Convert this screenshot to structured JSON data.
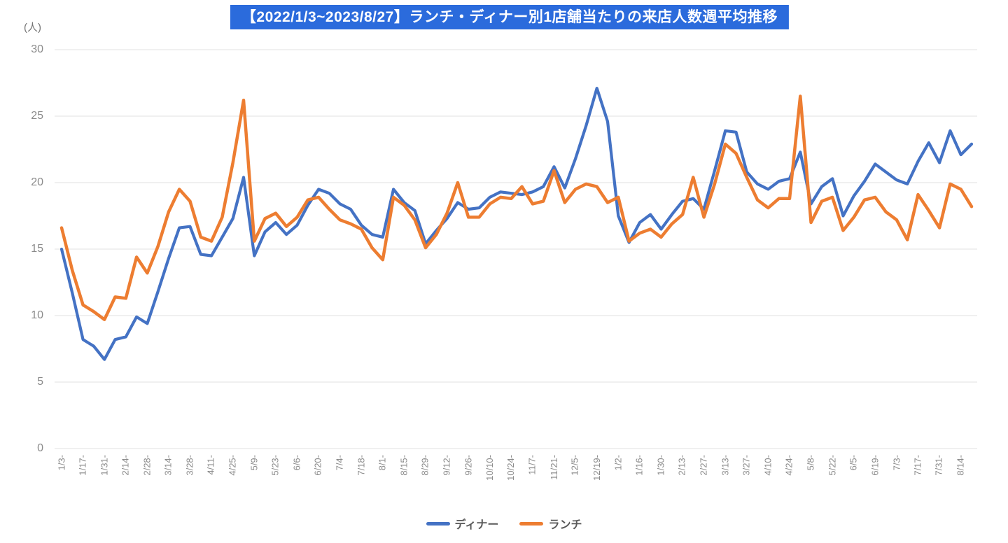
{
  "title": {
    "text": "【2022/1/3~2023/8/27】ランチ・ディナー別1店舗当たりの来店人数週平均推移",
    "bg_color": "#2B6BDC",
    "text_color": "#FFFFFF"
  },
  "chart_data": {
    "type": "line",
    "title": "【2022/1/3~2023/8/27】ランチ・ディナー別1店舗当たりの来店人数週平均推移",
    "unit_label": "(人)",
    "xlabel": "",
    "ylabel": "(人)",
    "ylim": [
      0,
      30
    ],
    "yticks": [
      0,
      5,
      10,
      15,
      20,
      25,
      30
    ],
    "grid": "horizontal",
    "gridline_color": "#e2e2e2",
    "legend_position": "bottom",
    "categories": [
      "1/3",
      "1/10",
      "1/17",
      "1/24",
      "1/31",
      "2/7",
      "2/14",
      "2/21",
      "2/28",
      "3/7",
      "3/14",
      "3/21",
      "3/28",
      "4/4",
      "4/11",
      "4/18",
      "4/25",
      "5/2",
      "5/9",
      "5/16",
      "5/23",
      "5/30",
      "6/6",
      "6/13",
      "6/20",
      "6/27",
      "7/4",
      "7/11",
      "7/18",
      "7/25",
      "8/1",
      "8/8",
      "8/15",
      "8/22",
      "8/29",
      "9/5",
      "9/12",
      "9/19",
      "9/26",
      "10/3",
      "10/10",
      "10/17",
      "10/24",
      "10/31",
      "11/7",
      "11/14",
      "11/21",
      "11/28",
      "12/5",
      "12/12",
      "12/19",
      "12/26",
      "1/2",
      "1/9",
      "1/16",
      "1/23",
      "1/30",
      "2/6",
      "2/13",
      "2/20",
      "2/27",
      "3/6",
      "3/13",
      "3/20",
      "3/27",
      "4/3",
      "4/10",
      "4/17",
      "4/24",
      "5/1",
      "5/8",
      "5/15",
      "5/22",
      "5/29",
      "6/5",
      "6/12",
      "6/19",
      "6/26",
      "7/3",
      "7/10",
      "7/17",
      "7/24",
      "7/31",
      "8/7",
      "8/14",
      "8/21"
    ],
    "x_axis_tick_labels": [
      "1/3-",
      "1/17-",
      "1/31-",
      "2/14-",
      "2/28-",
      "3/14-",
      "3/28-",
      "4/11-",
      "4/25-",
      "5/9-",
      "5/23-",
      "6/6-",
      "6/20-",
      "7/4-",
      "7/18-",
      "8/1-",
      "8/15-",
      "8/29-",
      "9/12-",
      "9/26-",
      "10/10-",
      "10/24-",
      "11/7-",
      "11/21-",
      "12/5-",
      "12/19-",
      "1/2-",
      "1/16-",
      "1/30-",
      "2/13-",
      "2/27-",
      "3/13-",
      "3/27-",
      "4/10-",
      "4/24-",
      "5/8-",
      "5/22-",
      "6/5-",
      "6/19-",
      "7/3-",
      "7/17-",
      "7/31-",
      "8/14-"
    ],
    "x_tick_step": 2,
    "series": [
      {
        "name": "ディナー",
        "color": "#4472C4",
        "values": [
          15.0,
          11.7,
          8.2,
          7.7,
          6.7,
          8.2,
          8.4,
          9.9,
          9.4,
          11.8,
          14.3,
          16.6,
          16.7,
          14.6,
          14.5,
          15.9,
          17.3,
          20.4,
          14.5,
          16.3,
          17.0,
          16.1,
          16.8,
          18.3,
          19.5,
          19.2,
          18.4,
          18.0,
          16.8,
          16.1,
          15.9,
          19.5,
          18.5,
          17.9,
          15.4,
          16.4,
          17.3,
          18.5,
          18.0,
          18.1,
          18.9,
          19.3,
          19.2,
          19.1,
          19.3,
          19.7,
          21.2,
          19.6,
          21.8,
          24.3,
          27.1,
          24.6,
          17.5,
          15.5,
          17.0,
          17.6,
          16.5,
          17.6,
          18.6,
          18.8,
          18.0,
          20.9,
          23.9,
          23.8,
          20.8,
          19.9,
          19.5,
          20.1,
          20.3,
          22.3,
          18.4,
          19.7,
          20.3,
          17.5,
          19.0,
          20.1,
          21.4,
          20.8,
          20.2,
          19.9,
          21.6,
          23.0,
          21.5,
          23.9,
          22.1,
          22.9
        ]
      },
      {
        "name": "ランチ",
        "color": "#ED7D31",
        "values": [
          16.6,
          13.4,
          10.8,
          10.3,
          9.7,
          11.4,
          11.3,
          14.4,
          13.2,
          15.2,
          17.8,
          19.5,
          18.6,
          15.9,
          15.6,
          17.4,
          21.5,
          26.2,
          15.6,
          17.3,
          17.7,
          16.7,
          17.4,
          18.7,
          18.9,
          18.0,
          17.2,
          16.9,
          16.5,
          15.1,
          14.2,
          18.9,
          18.3,
          17.2,
          15.1,
          16.1,
          17.7,
          20.0,
          17.4,
          17.4,
          18.4,
          18.9,
          18.8,
          19.7,
          18.4,
          18.6,
          20.9,
          18.5,
          19.5,
          19.9,
          19.7,
          18.5,
          18.9,
          15.6,
          16.2,
          16.5,
          15.9,
          16.9,
          17.6,
          20.4,
          17.4,
          19.9,
          22.9,
          22.2,
          20.4,
          18.7,
          18.1,
          18.8,
          18.8,
          26.5,
          17.0,
          18.6,
          18.9,
          16.4,
          17.4,
          18.7,
          18.9,
          17.8,
          17.2,
          15.7,
          19.1,
          17.9,
          16.6,
          19.9,
          19.5,
          18.2
        ]
      }
    ]
  },
  "legend": {
    "items": [
      {
        "label": "ディナー",
        "color": "#4472C4"
      },
      {
        "label": "ランチ",
        "color": "#ED7D31"
      }
    ]
  }
}
